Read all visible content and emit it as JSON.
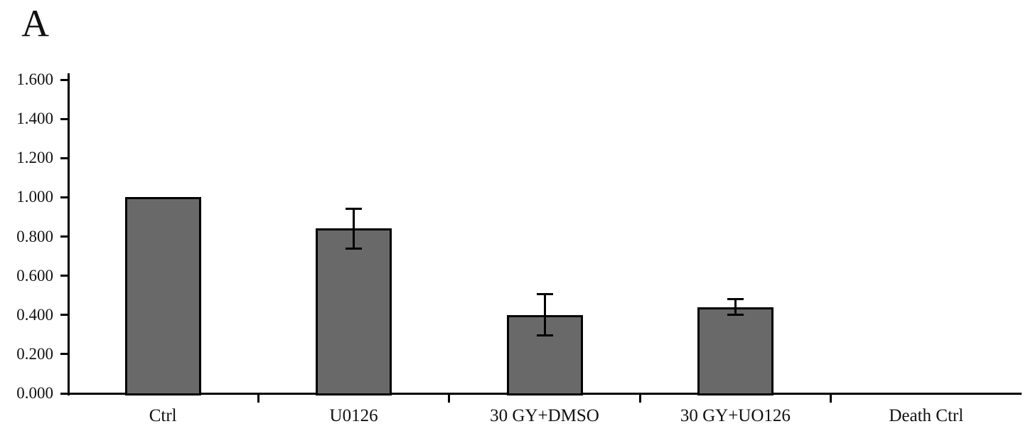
{
  "chart_data": {
    "type": "bar",
    "title": "",
    "panel_label": "A",
    "categories": [
      "Ctrl",
      "U0126",
      "30 GY+DMSO",
      "30 GY+UO126",
      "Death Ctrl"
    ],
    "values": [
      1.0,
      0.84,
      0.4,
      0.44,
      0.0
    ],
    "errors": [
      0,
      0.1,
      0.105,
      0.04,
      0
    ],
    "ytick_labels": [
      "0.000",
      "0.200",
      "0.400",
      "0.600",
      "0.800",
      "1.000",
      "1.200",
      "1.400",
      "1.600"
    ],
    "ytick_values": [
      0.0,
      0.2,
      0.4,
      0.6,
      0.8,
      1.0,
      1.2,
      1.4,
      1.6
    ],
    "ylim": [
      0,
      1.6
    ],
    "xlabel": "",
    "ylabel": "",
    "grid": false,
    "legend": "none",
    "bar_color": "#696969",
    "bar_border_color": "#000000",
    "axis_color": "#000000"
  }
}
